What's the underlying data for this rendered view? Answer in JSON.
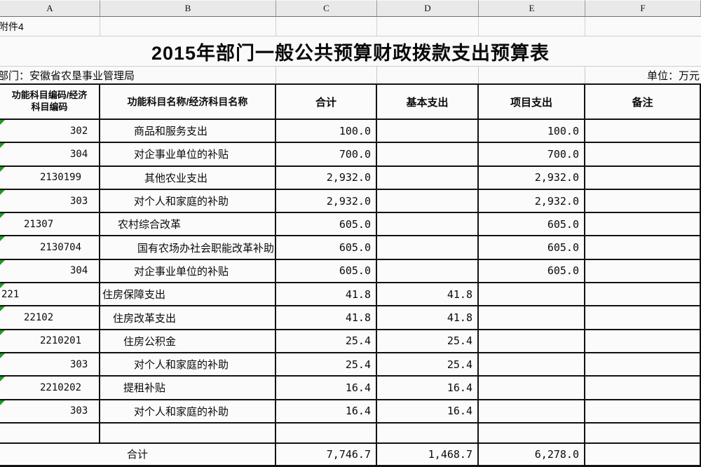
{
  "spreadsheet": {
    "column_letters": [
      "A",
      "B",
      "C",
      "D",
      "E",
      "F"
    ],
    "attachment_label": "附件4",
    "title": "2015年部门一般公共预算财政拨款支出预算表",
    "department_label": "部门：安徽省农垦事业管理局",
    "unit_label": "单位：万元"
  },
  "colors": {
    "error_indicator_green": "#1e9c1e",
    "table_border": "#121212",
    "letter_strip_bg": "#e9e9e9"
  },
  "table": {
    "headers": {
      "code_line1": "功能科目编码/经济",
      "code_line2": "科目编码",
      "name": "功能科目名称/经济科目名称",
      "total": "合计",
      "basic": "基本支出",
      "project": "项目支出",
      "note": "备注"
    },
    "rows": [
      {
        "code": "302",
        "code_indent": 100,
        "name": "商品和服务支出",
        "name_indent": 48,
        "total": "100.0",
        "basic": "",
        "project": "100.0",
        "note": "",
        "error_marker": true
      },
      {
        "code": "304",
        "code_indent": 100,
        "name": "对企事业单位的补贴",
        "name_indent": 48,
        "total": "700.0",
        "basic": "",
        "project": "700.0",
        "note": "",
        "error_marker": true
      },
      {
        "code": "2130199",
        "code_indent": 57,
        "name": "其他农业支出",
        "name_indent": 63,
        "total": "2,932.0",
        "basic": "",
        "project": "2,932.0",
        "note": "",
        "error_marker": true
      },
      {
        "code": "303",
        "code_indent": 100,
        "name": "对个人和家庭的补助",
        "name_indent": 48,
        "total": "2,932.0",
        "basic": "",
        "project": "2,932.0",
        "note": "",
        "error_marker": true
      },
      {
        "code": "21307",
        "code_indent": 34,
        "name": "农村综合改革",
        "name_indent": 25,
        "total": "605.0",
        "basic": "",
        "project": "605.0",
        "note": "",
        "error_marker": true
      },
      {
        "code": "2130704",
        "code_indent": 57,
        "name": "国有农场办社会职能改革补助",
        "name_indent": 53,
        "total": "605.0",
        "basic": "",
        "project": "605.0",
        "note": "",
        "error_marker": true
      },
      {
        "code": "304",
        "code_indent": 100,
        "name": "对企事业单位的补贴",
        "name_indent": 48,
        "total": "605.0",
        "basic": "",
        "project": "605.0",
        "note": "",
        "error_marker": true
      },
      {
        "code": "221",
        "code_indent": 2,
        "name": "住房保障支出",
        "name_indent": 3,
        "total": "41.8",
        "basic": "41.8",
        "project": "",
        "note": "",
        "error_marker": true
      },
      {
        "code": "22102",
        "code_indent": 34,
        "name": "住房改革支出",
        "name_indent": 18,
        "total": "41.8",
        "basic": "41.8",
        "project": "",
        "note": "",
        "error_marker": true
      },
      {
        "code": "2210201",
        "code_indent": 57,
        "name": "住房公积金",
        "name_indent": 33,
        "total": "25.4",
        "basic": "25.4",
        "project": "",
        "note": "",
        "error_marker": true
      },
      {
        "code": "303",
        "code_indent": 100,
        "name": "对个人和家庭的补助",
        "name_indent": 48,
        "total": "25.4",
        "basic": "25.4",
        "project": "",
        "note": "",
        "error_marker": true
      },
      {
        "code": "2210202",
        "code_indent": 57,
        "name": "提租补贴",
        "name_indent": 33,
        "total": "16.4",
        "basic": "16.4",
        "project": "",
        "note": "",
        "error_marker": true
      },
      {
        "code": "303",
        "code_indent": 100,
        "name": "对个人和家庭的补助",
        "name_indent": 48,
        "total": "16.4",
        "basic": "16.4",
        "project": "",
        "note": "",
        "error_marker": true
      }
    ],
    "empty_row": {
      "code": "",
      "name": "",
      "total": "",
      "basic": "",
      "project": "",
      "note": ""
    },
    "total_row": {
      "label": "合计",
      "total": "7,746.7",
      "basic": "1,468.7",
      "project": "6,278.0",
      "note": ""
    }
  }
}
